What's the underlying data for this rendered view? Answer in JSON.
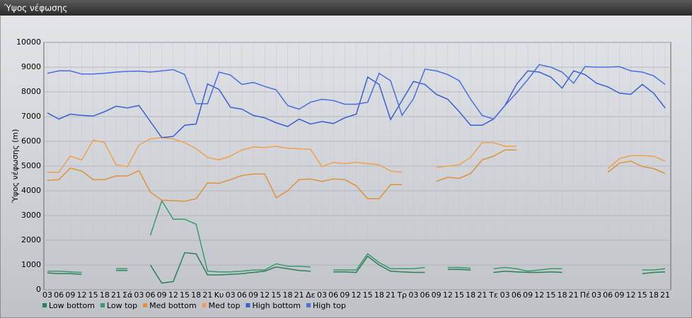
{
  "chart_data": {
    "type": "line",
    "title": "Ύψος νέφωσης",
    "y_label": "Ύψος νέφωσης (m)",
    "categories": [
      "03",
      "06",
      "09",
      "12",
      "15",
      "18",
      "21",
      "Σά",
      "03",
      "06",
      "09",
      "12",
      "15",
      "18",
      "21",
      "Κυ",
      "03",
      "06",
      "09",
      "12",
      "15",
      "18",
      "21",
      "Δε",
      "03",
      "06",
      "09",
      "12",
      "15",
      "18",
      "21",
      "Τρ",
      "03",
      "06",
      "09",
      "12",
      "15",
      "18",
      "21",
      "Τε",
      "03",
      "06",
      "09",
      "12",
      "15",
      "18",
      "21",
      "Πέ",
      "03",
      "06",
      "09",
      "12",
      "15",
      "18",
      "21"
    ],
    "ylim": [
      0,
      10000
    ],
    "yticks": [
      0,
      1000,
      2000,
      3000,
      4000,
      5000,
      6000,
      7000,
      8000,
      9000,
      10000
    ],
    "grid": true,
    "series": [
      {
        "name": "Low bottom",
        "color": "#2e7d5b",
        "values": [
          680,
          650,
          650,
          620,
          null,
          null,
          780,
          780,
          null,
          1000,
          270,
          330,
          1500,
          1450,
          600,
          600,
          620,
          650,
          700,
          750,
          920,
          850,
          780,
          750,
          null,
          720,
          720,
          700,
          1350,
          1000,
          750,
          720,
          700,
          700,
          null,
          820,
          820,
          800,
          null,
          700,
          750,
          720,
          700,
          700,
          720,
          700,
          null,
          null,
          null,
          null,
          null,
          null,
          650,
          700,
          720
        ]
      },
      {
        "name": "Low top",
        "color": "#3a9a6a",
        "values": [
          750,
          750,
          720,
          700,
          null,
          null,
          850,
          850,
          null,
          2200,
          3600,
          2850,
          2850,
          2650,
          750,
          720,
          720,
          750,
          800,
          800,
          1050,
          950,
          950,
          920,
          null,
          800,
          800,
          800,
          1450,
          1100,
          850,
          850,
          850,
          900,
          null,
          900,
          900,
          870,
          null,
          850,
          900,
          850,
          750,
          800,
          850,
          850,
          null,
          null,
          null,
          null,
          null,
          null,
          800,
          800,
          850
        ]
      },
      {
        "name": "Med bottom",
        "color": "#e0913a",
        "values": [
          4420,
          4450,
          4920,
          4800,
          4450,
          4450,
          4600,
          4600,
          4820,
          3950,
          3620,
          3600,
          3580,
          3680,
          4320,
          4300,
          4450,
          4620,
          4680,
          4680,
          3720,
          4000,
          4450,
          4480,
          4380,
          4480,
          4450,
          4200,
          3680,
          3680,
          4250,
          4250,
          null,
          null,
          4380,
          4550,
          4500,
          4700,
          5250,
          5400,
          5650,
          5650,
          null,
          null,
          null,
          null,
          null,
          null,
          null,
          4750,
          5120,
          5200,
          4980,
          4900,
          4700
        ]
      },
      {
        "name": "Med top",
        "color": "#f0a050",
        "values": [
          4750,
          4750,
          5400,
          5250,
          6050,
          5950,
          5050,
          4980,
          5850,
          6100,
          6150,
          6100,
          5950,
          5700,
          5350,
          5250,
          5400,
          5650,
          5770,
          5750,
          5800,
          5720,
          5700,
          5680,
          4980,
          5150,
          5100,
          5150,
          5100,
          5050,
          4800,
          4750,
          null,
          null,
          4950,
          5000,
          5050,
          5350,
          5950,
          5950,
          5800,
          5800,
          null,
          null,
          null,
          null,
          null,
          null,
          null,
          4900,
          5300,
          5420,
          5420,
          5400,
          5200
        ]
      },
      {
        "name": "High bottom",
        "color": "#3b5fd0",
        "values": [
          7150,
          6900,
          7100,
          7050,
          7020,
          7200,
          7420,
          7350,
          7450,
          6800,
          6150,
          6200,
          6650,
          6700,
          8320,
          8100,
          7380,
          7300,
          7050,
          6950,
          6750,
          6600,
          6900,
          6700,
          6800,
          6720,
          6950,
          7100,
          8600,
          8300,
          6880,
          7650,
          8420,
          8300,
          7900,
          7700,
          7200,
          6650,
          6650,
          6900,
          7450,
          8300,
          8850,
          8800,
          8600,
          8150,
          8850,
          8700,
          8350,
          8200,
          7950,
          7900,
          8300,
          7950,
          7350
        ]
      },
      {
        "name": "High top",
        "color": "#4a6ee0",
        "values": [
          8750,
          8850,
          8850,
          8720,
          8720,
          8750,
          8800,
          8830,
          8840,
          8800,
          8850,
          8900,
          8700,
          7520,
          7520,
          8800,
          8680,
          8300,
          8380,
          8220,
          8080,
          7450,
          7300,
          7580,
          7700,
          7650,
          7500,
          7500,
          7580,
          8750,
          8450,
          7050,
          7720,
          8920,
          8850,
          8700,
          8450,
          7700,
          7050,
          6900,
          7450,
          7950,
          8500,
          9100,
          9000,
          8800,
          8350,
          9020,
          9000,
          9000,
          9020,
          8850,
          8800,
          8650,
          8300
        ]
      }
    ]
  }
}
